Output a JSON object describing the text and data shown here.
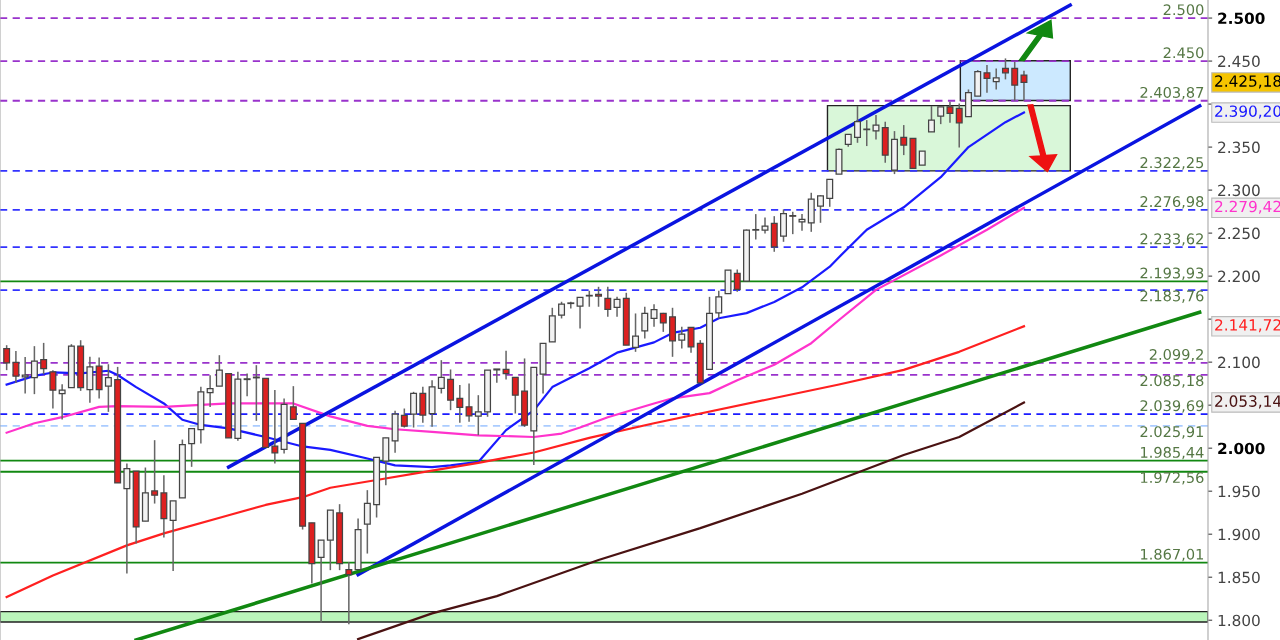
{
  "chart_data": {
    "type": "candlestick",
    "categories": [
      null,
      null,
      null,
      null,
      null,
      null,
      null,
      null,
      null,
      null,
      null,
      null,
      null,
      null,
      null,
      null,
      null,
      null,
      null,
      null,
      null,
      null,
      null,
      null,
      null,
      null,
      null,
      null,
      null,
      null,
      null,
      null,
      null,
      null,
      null,
      null,
      null,
      null,
      null,
      null,
      null,
      null,
      null,
      null,
      null,
      null,
      null,
      null,
      null,
      null,
      null,
      null,
      null,
      null,
      null,
      null,
      null,
      null,
      null,
      null,
      null,
      null,
      null,
      null,
      null,
      null,
      null,
      null,
      null,
      null,
      null,
      null,
      null,
      null,
      null,
      null,
      null,
      null,
      null,
      null,
      null,
      null,
      null,
      null,
      null,
      null,
      null,
      null,
      null,
      null,
      null,
      null,
      null,
      null,
      null,
      null,
      null,
      null,
      null,
      null,
      null,
      null,
      null,
      null,
      null,
      null,
      null,
      null,
      null,
      null,
      null,
      null,
      null,
      null,
      null,
      null,
      null,
      null,
      null,
      null,
      null,
      null,
      null,
      null,
      null,
      null,
      null,
      null,
      null,
      null
    ],
    "ohlc": [
      [
        2115.8,
        2119.7,
        2090.7,
        2099.2
      ],
      [
        2099.6,
        2113.1,
        2075.9,
        2083.7
      ],
      [
        2083.0,
        2106.0,
        2063.5,
        2085.0
      ],
      [
        2082.1,
        2118.6,
        2062.8,
        2101.1
      ],
      [
        2103.0,
        2122.4,
        2086.0,
        2092.6
      ],
      [
        2088.7,
        2090.7,
        2046.1,
        2067.4
      ],
      [
        2063.5,
        2074.4,
        2033.3,
        2067.4
      ],
      [
        2070.5,
        2120.9,
        2070.5,
        2118.6
      ],
      [
        2118.6,
        2125.5,
        2066.6,
        2070.5
      ],
      [
        2068.2,
        2106.2,
        2052.7,
        2094.5
      ],
      [
        2095.3,
        2105.4,
        2057.7,
        2068.2
      ],
      [
        2072.1,
        2097.6,
        2042.2,
        2082.1
      ],
      [
        2079.8,
        2094.5,
        1959.6,
        1959.6
      ],
      [
        1953.1,
        1982.1,
        1854.2,
        1976.3
      ],
      [
        1973.2,
        1973.2,
        1889.1,
        1908.5
      ],
      [
        1915.1,
        1977.5,
        1915.1,
        1948.0
      ],
      [
        1950.3,
        2009.3,
        1935.6,
        1945.3
      ],
      [
        1948.0,
        1968.6,
        1896.1,
        1918.2
      ],
      [
        1916.2,
        1938.7,
        1857.3,
        1938.7
      ],
      [
        1942.2,
        2010.0,
        1942.2,
        2004.2
      ],
      [
        2005.4,
        2022.8,
        1978.3,
        2022.8
      ],
      [
        2021.7,
        2071.3,
        2005.4,
        2065.5
      ],
      [
        2064.7,
        2084.8,
        2048.0,
        2069.3
      ],
      [
        2072.1,
        2108.1,
        2072.1,
        2090.7
      ],
      [
        2086.8,
        2086.8,
        2012.0,
        2012.0
      ],
      [
        2011.3,
        2088.8,
        2008.5,
        2080.2
      ],
      [
        2079.8,
        2086.8,
        2060.5,
        2080.6
      ],
      [
        2081.8,
        2096.5,
        2031.8,
        2082.6
      ],
      [
        2081.0,
        2081.0,
        2000.8,
        2000.8
      ],
      [
        2002.3,
        2067.5,
        1982.2,
        1994.6
      ],
      [
        1998.5,
        2057.8,
        1993.8,
        2050.8
      ],
      [
        2048.1,
        2072.1,
        2033.4,
        2033.4
      ],
      [
        2028.7,
        2028.7,
        1905.4,
        1909.3
      ],
      [
        1913.2,
        1913.2,
        1842.7,
        1865.9
      ],
      [
        1873.0,
        1893.0,
        1796.9,
        1893.0
      ],
      [
        1893.0,
        1927.9,
        1858.2,
        1927.9
      ],
      [
        1924.8,
        1934.9,
        1858.2,
        1865.9
      ],
      [
        1858.9,
        1867.8,
        1795.4,
        1853.1
      ],
      [
        1858.9,
        1918.2,
        1858.9,
        1905.4
      ],
      [
        1911.6,
        1951.2,
        1877.5,
        1935.7
      ],
      [
        1934.5,
        1989.2,
        1919.4,
        1989.2
      ],
      [
        1984.9,
        2012.0,
        1957.0,
        2012.0
      ],
      [
        2008.5,
        2043.4,
        1994.6,
        2039.6
      ],
      [
        2038.0,
        2046.1,
        2024.0,
        2025.6
      ],
      [
        2039.6,
        2065.5,
        2024.0,
        2063.6
      ],
      [
        2063.6,
        2071.3,
        2029.5,
        2038.4
      ],
      [
        2040.3,
        2079.1,
        2024.8,
        2071.3
      ],
      [
        2069.4,
        2102.3,
        2063.6,
        2082.2
      ],
      [
        2079.9,
        2091.5,
        2044.2,
        2055.8
      ],
      [
        2057.8,
        2073.3,
        2029.5,
        2047.3
      ],
      [
        2048.1,
        2075.2,
        2030.6,
        2037.6
      ],
      [
        2037.2,
        2061.6,
        2015.1,
        2042.3
      ],
      [
        2042.3,
        2090.7,
        2036.5,
        2090.7
      ],
      [
        2092.0,
        2092.0,
        2076.0,
        2091.0
      ],
      [
        2091.5,
        2113.2,
        2079.9,
        2086.8
      ],
      [
        2082.2,
        2082.2,
        2040.3,
        2061.6
      ],
      [
        2066.3,
        2104.3,
        2024.8,
        2026.8
      ],
      [
        2020.2,
        2093.8,
        1980.3,
        2093.8
      ],
      [
        2086.1,
        2121.7,
        2063.6,
        2121.7
      ],
      [
        2123.7,
        2163.2,
        2123.7,
        2153.9
      ],
      [
        2154.7,
        2170.2,
        2150.8,
        2167.5
      ],
      [
        2168.2,
        2170.2,
        2162.4,
        2168.6
      ],
      [
        2165.1,
        2175.2,
        2139.2,
        2175.2
      ],
      [
        2177.0,
        2183.0,
        2164.4,
        2177.5
      ],
      [
        2178.7,
        2187.6,
        2164.4,
        2176.8
      ],
      [
        2174.1,
        2187.6,
        2152.7,
        2161.3
      ],
      [
        2163.6,
        2176.0,
        2152.7,
        2172.9
      ],
      [
        2174.1,
        2180.6,
        2119.8,
        2119.8
      ],
      [
        2117.1,
        2156.6,
        2112.0,
        2130.3
      ],
      [
        2136.5,
        2164.4,
        2127.5,
        2156.6
      ],
      [
        2150.8,
        2167.4,
        2141.1,
        2161.2
      ],
      [
        2156.6,
        2157.3,
        2135.2,
        2145.7
      ],
      [
        2152.7,
        2163.2,
        2106.2,
        2124.8
      ],
      [
        2125.6,
        2141.1,
        2115.9,
        2132.5
      ],
      [
        2140.3,
        2140.3,
        2110.8,
        2117.8
      ],
      [
        2121.7,
        2125.6,
        2075.9,
        2075.9
      ],
      [
        2091.5,
        2175.9,
        2091.5,
        2156.6
      ],
      [
        2157.3,
        2182.9,
        2150.8,
        2176.0
      ],
      [
        2179.8,
        2206.9,
        2179.8,
        2206.9
      ],
      [
        2203.1,
        2207.7,
        2181.8,
        2184.5
      ],
      [
        2194.2,
        2254.2,
        2194.2,
        2253.5
      ],
      [
        2253.5,
        2272.1,
        2242.6,
        2253.9
      ],
      [
        2253.5,
        2268.2,
        2249.6,
        2258.1
      ],
      [
        2261.2,
        2269.7,
        2228.3,
        2234.1
      ],
      [
        2246.5,
        2277.5,
        2239.9,
        2272.8
      ],
      [
        2270.1,
        2274.8,
        2248.8,
        2269.7
      ],
      [
        2263.1,
        2272.1,
        2252.7,
        2265.9
      ],
      [
        2262.0,
        2296.9,
        2251.5,
        2289.5
      ],
      [
        2281.4,
        2294.2,
        2262.0,
        2293.4
      ],
      [
        2290.3,
        2312.4,
        2280.6,
        2312.4
      ],
      [
        2318.6,
        2348.5,
        2318.6,
        2347.3
      ],
      [
        2353.1,
        2364.7,
        2350.4,
        2364.7
      ],
      [
        2361.3,
        2397.7,
        2355.0,
        2379.5
      ],
      [
        2370.3,
        2381.4,
        2351.2,
        2370.8
      ],
      [
        2369.0,
        2387.2,
        2358.9,
        2375.6
      ],
      [
        2372.5,
        2379.5,
        2331.8,
        2340.7
      ],
      [
        2323.3,
        2368.6,
        2318.6,
        2358.9
      ],
      [
        2361.3,
        2375.6,
        2340.7,
        2352.3
      ],
      [
        2360.1,
        2360.1,
        2325.2,
        2325.2
      ],
      [
        2329.1,
        2345.4,
        2329.1,
        2345.4
      ],
      [
        2367.8,
        2397.7,
        2367.8,
        2381.4
      ],
      [
        2386.1,
        2396.9,
        2376.7,
        2396.9
      ],
      [
        2396.9,
        2402.7,
        2378.3,
        2389.2
      ],
      [
        2395.0,
        2400.8,
        2349.6,
        2378.3
      ],
      [
        2385.3,
        2417.0,
        2385.3,
        2413.2
      ],
      [
        2409.3,
        2439.5,
        2409.3,
        2437.6
      ],
      [
        2436.4,
        2445.4,
        2413.2,
        2429.9
      ],
      [
        2426.0,
        2441.5,
        2417.1,
        2430.6
      ],
      [
        2441.5,
        2453.1,
        2428.7,
        2436.4
      ],
      [
        2441.5,
        2449.2,
        2403.9,
        2422.1
      ],
      [
        2433.7,
        2438.8,
        2403.9,
        2425.18
      ],
      null,
      null,
      null,
      null,
      null,
      null,
      null,
      null,
      null,
      null,
      null,
      null,
      null,
      null,
      null,
      null,
      null,
      null,
      null
    ],
    "annotations": [
      "2.425,18",
      "2.390,20",
      "2.279,42",
      "2.141,72",
      "2.053,14"
    ],
    "series": [
      {
        "type": "line",
        "color": "#1a1aff",
        "values": [
          2074,
          null,
          null,
          2084,
          null,
          2088,
          null,
          null,
          2087,
          null,
          null,
          2090,
          2085,
          null,
          2071,
          null,
          null,
          2052,
          null,
          2033,
          null,
          2027,
          null,
          null,
          2023,
          null,
          null,
          null,
          2013,
          null,
          null,
          null,
          2002,
          null,
          null,
          1998,
          null,
          null,
          null,
          1988,
          null,
          null,
          1980,
          null,
          null,
          null,
          1978,
          null,
          1980,
          null,
          null,
          1984,
          null,
          null,
          2021,
          null,
          null,
          2044,
          null,
          2071,
          null,
          null,
          null,
          2093,
          null,
          null,
          2111,
          null,
          null,
          null,
          2123,
          null,
          2134,
          null,
          null,
          2140,
          null,
          2151,
          null,
          null,
          2157,
          null,
          null,
          2170,
          null,
          null,
          2187,
          null,
          null,
          2211,
          2222,
          null,
          null,
          2254,
          null,
          null,
          null,
          2280,
          null,
          null,
          null,
          2315,
          null,
          null,
          2350,
          null,
          null,
          null,
          2379,
          null,
          2390.2,
          null,
          null,
          null,
          null,
          null,
          null,
          null,
          null,
          null,
          null,
          null,
          null,
          null,
          null,
          null,
          null,
          null,
          null,
          null
        ]
      },
      {
        "type": "line",
        "color": "#ff33cc",
        "values": [
          2018,
          null,
          null,
          2029,
          null,
          null,
          2036,
          null,
          null,
          null,
          2048,
          null,
          2049,
          null,
          null,
          null,
          null,
          2048,
          null,
          null,
          null,
          null,
          null,
          null,
          2052,
          null,
          null,
          null,
          null,
          null,
          null,
          2052,
          null,
          null,
          null,
          2037,
          null,
          null,
          null,
          2026,
          null,
          null,
          2022,
          null,
          null,
          null,
          2019,
          null,
          null,
          null,
          null,
          2015,
          null,
          null,
          null,
          null,
          null,
          2013,
          null,
          null,
          2017,
          null,
          2024,
          null,
          null,
          2036,
          null,
          null,
          null,
          null,
          2052,
          null,
          2058,
          null,
          null,
          null,
          2064,
          null,
          null,
          2079,
          null,
          null,
          null,
          2097,
          null,
          null,
          null,
          2122,
          null,
          null,
          2149,
          null,
          null,
          null,
          2184,
          null,
          null,
          null,
          null,
          null,
          null,
          2224,
          null,
          null,
          null,
          null,
          2254,
          null,
          null,
          null,
          2279.42,
          null,
          null,
          null,
          null,
          null,
          null,
          null,
          null,
          null,
          null,
          null,
          null,
          null,
          null,
          null,
          null,
          null,
          null,
          null
        ]
      },
      {
        "type": "line",
        "color": "#ff2020",
        "values": [
          1827,
          null,
          null,
          null,
          null,
          1852,
          null,
          null,
          null,
          null,
          null,
          null,
          null,
          1887,
          null,
          null,
          null,
          1901,
          null,
          null,
          null,
          null,
          null,
          null,
          1922,
          null,
          null,
          null,
          1934,
          null,
          null,
          null,
          1943,
          null,
          null,
          1954,
          null,
          null,
          null,
          null,
          1963,
          null,
          null,
          null,
          null,
          null,
          1974,
          null,
          null,
          null,
          null,
          1983,
          null,
          null,
          null,
          null,
          null,
          1995,
          null,
          null,
          null,
          null,
          null,
          2012,
          null,
          null,
          null,
          null,
          null,
          null,
          2029,
          null,
          null,
          null,
          null,
          null,
          null,
          null,
          null,
          null,
          null,
          null,
          2056,
          null,
          null,
          null,
          null,
          null,
          null,
          null,
          2074,
          null,
          null,
          null,
          null,
          null,
          null,
          2091,
          null,
          null,
          null,
          null,
          null,
          2112,
          null,
          null,
          null,
          null,
          null,
          null,
          2141.72,
          null,
          null,
          null,
          null,
          null,
          null,
          null,
          null,
          null,
          null,
          null,
          null,
          null,
          null,
          null,
          null,
          null,
          null,
          null
        ]
      },
      {
        "type": "line",
        "color": "#4a1212",
        "values": [
          null,
          null,
          null,
          null,
          null,
          null,
          null,
          null,
          null,
          null,
          null,
          null,
          null,
          null,
          null,
          null,
          null,
          null,
          null,
          null,
          null,
          null,
          null,
          null,
          null,
          null,
          null,
          null,
          null,
          null,
          null,
          null,
          null,
          null,
          null,
          null,
          null,
          null,
          1778,
          null,
          null,
          null,
          null,
          null,
          null,
          null,
          1808,
          null,
          null,
          null,
          null,
          null,
          null,
          1828,
          null,
          null,
          null,
          null,
          null,
          null,
          null,
          null,
          null,
          null,
          1870,
          null,
          null,
          null,
          null,
          null,
          null,
          null,
          null,
          null,
          null,
          1907,
          null,
          null,
          null,
          null,
          null,
          null,
          null,
          null,
          null,
          null,
          1947,
          null,
          null,
          null,
          null,
          null,
          null,
          null,
          null,
          null,
          null,
          1992,
          null,
          null,
          null,
          null,
          null,
          2013,
          null,
          null,
          null,
          null,
          null,
          null,
          2053.14,
          null,
          null,
          null,
          null,
          null,
          null,
          null,
          null,
          null,
          null,
          null,
          null,
          null,
          null,
          null,
          null,
          null,
          null,
          null
        ]
      },
      {
        "type": "line",
        "color": "#0a14e0",
        "values": [
          null,
          null,
          null,
          null,
          null,
          null,
          null,
          null,
          null,
          null,
          null,
          null,
          null,
          null,
          null,
          null,
          null,
          null,
          null,
          null,
          null,
          null,
          null,
          null,
          1978,
          null,
          null,
          null,
          null,
          null,
          null,
          null,
          null,
          null,
          null,
          null,
          null,
          null,
          null,
          null,
          null,
          null,
          null,
          null,
          null,
          null,
          null,
          null,
          null,
          null,
          null,
          null,
          null,
          null,
          null,
          null,
          null,
          null,
          null,
          null,
          null,
          null,
          null,
          null,
          null,
          null,
          null,
          null,
          null,
          null,
          null,
          null,
          null,
          null,
          null,
          null,
          null,
          null,
          null,
          null,
          null,
          null,
          null,
          null,
          null,
          null,
          null,
          null,
          null,
          null,
          null,
          null,
          null,
          null,
          null,
          null,
          null,
          null,
          null,
          null,
          null,
          null,
          null,
          null,
          null,
          null,
          null,
          null,
          null,
          null,
          null,
          null,
          null,
          null,
          null,
          2515,
          null,
          null,
          null,
          null,
          null,
          null,
          null,
          null,
          null,
          null,
          null,
          null,
          null,
          null
        ]
      },
      {
        "type": "line",
        "color": "#0a14e0",
        "values": [
          null,
          null,
          null,
          null,
          null,
          null,
          null,
          null,
          null,
          null,
          null,
          null,
          null,
          null,
          null,
          null,
          null,
          null,
          null,
          null,
          null,
          null,
          null,
          null,
          null,
          null,
          null,
          null,
          null,
          null,
          null,
          null,
          null,
          null,
          null,
          null,
          null,
          null,
          1853,
          null,
          null,
          null,
          null,
          null,
          null,
          null,
          null,
          null,
          null,
          null,
          null,
          null,
          null,
          null,
          null,
          null,
          null,
          null,
          null,
          null,
          null,
          null,
          null,
          null,
          null,
          null,
          null,
          null,
          null,
          null,
          null,
          null,
          null,
          null,
          null,
          null,
          null,
          null,
          null,
          null,
          null,
          null,
          null,
          null,
          null,
          null,
          null,
          null,
          null,
          null,
          null,
          null,
          null,
          null,
          null,
          null,
          null,
          null,
          null,
          null,
          null,
          null,
          null,
          null,
          null,
          null,
          null,
          null,
          null,
          null,
          null,
          null,
          null,
          null,
          null,
          null,
          null,
          null,
          null,
          null,
          null,
          null,
          null,
          null,
          null,
          null,
          null,
          null,
          null,
          2398
        ]
      },
      {
        "type": "line",
        "color": "#118811",
        "values": [
          null,
          null,
          null,
          null,
          null,
          null,
          null,
          null,
          null,
          null,
          null,
          null,
          null,
          null,
          1777,
          null,
          null,
          null,
          null,
          null,
          null,
          null,
          null,
          null,
          null,
          null,
          null,
          null,
          null,
          null,
          null,
          null,
          null,
          null,
          null,
          null,
          null,
          null,
          null,
          null,
          null,
          null,
          null,
          null,
          null,
          null,
          null,
          null,
          null,
          null,
          null,
          null,
          null,
          null,
          null,
          null,
          null,
          null,
          null,
          null,
          null,
          null,
          null,
          null,
          null,
          null,
          null,
          null,
          null,
          null,
          null,
          null,
          null,
          null,
          null,
          null,
          null,
          null,
          null,
          null,
          null,
          null,
          null,
          null,
          null,
          null,
          null,
          null,
          null,
          null,
          null,
          null,
          null,
          null,
          null,
          null,
          null,
          null,
          null,
          null,
          null,
          null,
          null,
          null,
          null,
          null,
          null,
          null,
          null,
          null,
          null,
          null,
          null,
          null,
          null,
          null,
          null,
          null,
          null,
          null,
          null,
          null,
          null,
          null,
          null,
          null,
          null,
          null,
          null,
          2158
        ]
      }
    ],
    "ylim": [
      1777,
      2521
    ],
    "yticks": [
      {
        "value": 1800,
        "label": "1.800"
      },
      {
        "value": 1850,
        "label": "1.850"
      },
      {
        "value": 1900,
        "label": "1.900"
      },
      {
        "value": 1950,
        "label": "1.950"
      },
      {
        "value": 2000,
        "label": "2.000"
      },
      {
        "value": 2050,
        "label": null
      },
      {
        "value": 2100,
        "label": "2.100"
      },
      {
        "value": 2150,
        "label": null
      },
      {
        "value": 2200,
        "label": "2.200"
      },
      {
        "value": 2250,
        "label": "2.250"
      },
      {
        "value": 2300,
        "label": "2.300"
      },
      {
        "value": 2350,
        "label": "2.350"
      },
      {
        "value": 2400,
        "label": null
      },
      {
        "value": 2450,
        "label": "2.450"
      },
      {
        "value": 2500,
        "label": "2.500"
      }
    ],
    "tick_labels": "y",
    "grid": false,
    "legend": false,
    "ref_lines": [
      {
        "axis": "y",
        "value": 2500,
        "label": "2.500",
        "color": "#9933cc",
        "line_style": "dashed"
      },
      {
        "axis": "y",
        "value": 2450,
        "label": "2.450",
        "color": "#9933cc",
        "line_style": "dashed"
      },
      {
        "axis": "y",
        "value": 2403.87,
        "label": "2.403,87",
        "color": "#9933cc",
        "line_style": "dashed"
      },
      {
        "axis": "y",
        "value": 2322.25,
        "label": "2.322,25",
        "color": "#3333ff",
        "line_style": "dashed"
      },
      {
        "axis": "y",
        "value": 2276.98,
        "label": "2.276,98",
        "color": "#3333ff",
        "line_style": "dashed"
      },
      {
        "axis": "y",
        "value": 2233.62,
        "label": "2.233,62",
        "color": "#3333ff",
        "line_style": "dashed"
      },
      {
        "axis": "y",
        "value": 2193.93,
        "label": "2.193,93",
        "color": "#118811",
        "line_style": "solid"
      },
      {
        "axis": "y",
        "value": 2183.76,
        "label": "2.183,76",
        "color": "#3333ff",
        "line_style": "dashed"
      },
      {
        "axis": "y",
        "value": 2099.2,
        "label": "2.099,2",
        "color": "#9933cc",
        "line_style": "dashed"
      },
      {
        "axis": "y",
        "value": 2085.18,
        "label": "2.085,18",
        "color": "#9933cc",
        "line_style": "dashed"
      },
      {
        "axis": "y",
        "value": 2039.69,
        "label": "2.039,69",
        "color": "#1a1aff",
        "line_style": "dashed"
      },
      {
        "axis": "y",
        "value": 2025.91,
        "label": "2.025,91",
        "color": "#aaccff",
        "line_style": "dashed"
      },
      {
        "axis": "y",
        "value": 1985.44,
        "label": "1.985,44",
        "color": "#118811",
        "line_style": "solid"
      },
      {
        "axis": "y",
        "value": 1972.56,
        "label": "1.972,56",
        "color": "#118811",
        "line_style": "solid"
      },
      {
        "axis": "y",
        "value": 1867.01,
        "label": "1.867,01",
        "color": "#118811",
        "line_style": "solid"
      }
    ],
    "bands": [
      {
        "axis": "y",
        "from": 1798,
        "to": 1810,
        "color": "#bbf5bb"
      }
    ]
  }
}
